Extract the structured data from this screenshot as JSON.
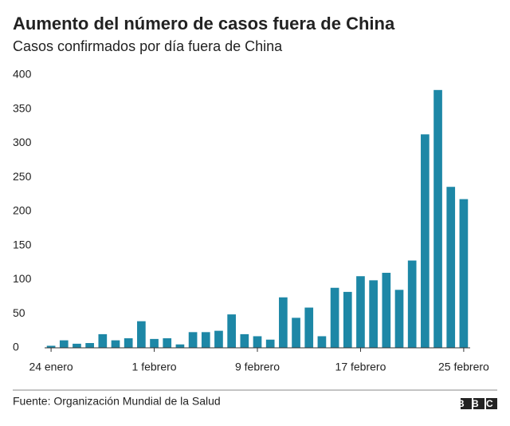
{
  "chart_data": {
    "type": "bar",
    "title": "Aumento del número de casos fuera de China",
    "subtitle": "Casos confirmados por día fuera de China",
    "source": "Fuente: Organización Mundial de la Salud",
    "logo": "BBC",
    "categories": [
      "24 enero",
      null,
      null,
      null,
      null,
      null,
      null,
      null,
      "1 febrero",
      null,
      null,
      null,
      null,
      null,
      null,
      null,
      "9 febrero",
      null,
      null,
      null,
      null,
      null,
      null,
      null,
      "17 febrero",
      null,
      null,
      null,
      null,
      null,
      null,
      null,
      "25 febrero"
    ],
    "values": [
      3,
      11,
      6,
      7,
      20,
      11,
      14,
      39,
      13,
      14,
      5,
      23,
      23,
      25,
      49,
      20,
      17,
      12,
      74,
      44,
      59,
      17,
      88,
      82,
      105,
      99,
      110,
      85,
      128,
      313,
      378,
      236,
      218
    ],
    "color": "#1d87a6",
    "ylim": [
      0,
      400
    ],
    "yticks": [
      0,
      50,
      100,
      150,
      200,
      250,
      300,
      350,
      400
    ],
    "grid": false
  }
}
